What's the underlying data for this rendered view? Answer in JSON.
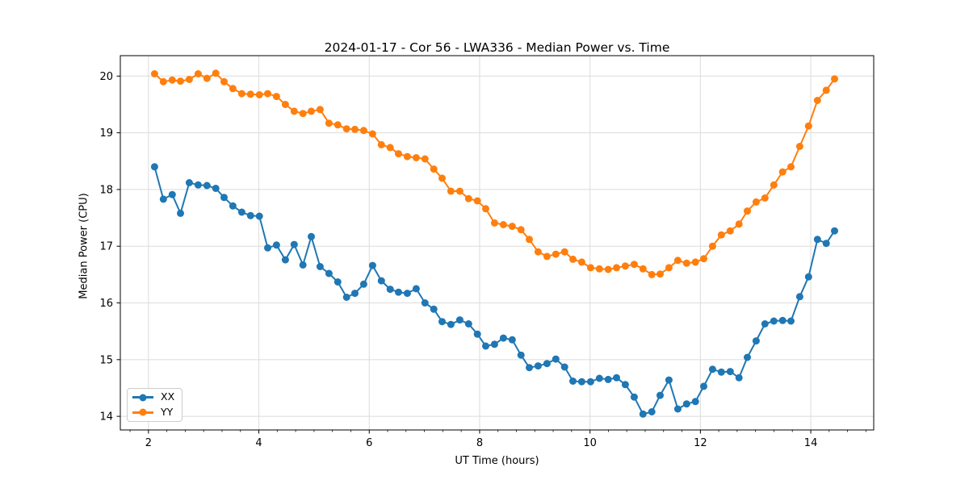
{
  "figure": {
    "background": "#ffffff"
  },
  "chart_data": {
    "type": "line",
    "title": "2024-01-17 - Cor 56 - LWA336 - Median Power vs. Time",
    "xlabel": "UT Time (hours)",
    "ylabel": "Median Power (CPU)",
    "xlim": [
      1.49,
      15.14
    ],
    "ylim": [
      13.76,
      20.36
    ],
    "x_ticks": [
      2,
      4,
      6,
      8,
      10,
      12,
      14
    ],
    "x_tick_labels": [
      "2",
      "4",
      "6",
      "8",
      "10",
      "12",
      "14"
    ],
    "x_minor_tick_step": 0.3333,
    "y_ticks": [
      14,
      15,
      16,
      17,
      18,
      19,
      20
    ],
    "y_tick_labels": [
      "14",
      "15",
      "16",
      "17",
      "18",
      "19",
      "20"
    ],
    "grid": true,
    "legend_position": "lower-left",
    "x": [
      2.11,
      2.27,
      2.43,
      2.58,
      2.74,
      2.9,
      3.06,
      3.22,
      3.37,
      3.53,
      3.69,
      3.85,
      4.01,
      4.16,
      4.32,
      4.48,
      4.64,
      4.8,
      4.95,
      5.11,
      5.27,
      5.43,
      5.59,
      5.74,
      5.9,
      6.06,
      6.22,
      6.38,
      6.53,
      6.69,
      6.85,
      7.01,
      7.17,
      7.32,
      7.48,
      7.64,
      7.8,
      7.96,
      8.11,
      8.27,
      8.43,
      8.59,
      8.75,
      8.9,
      9.06,
      9.22,
      9.38,
      9.54,
      9.69,
      9.85,
      10.01,
      10.17,
      10.33,
      10.48,
      10.64,
      10.8,
      10.96,
      11.12,
      11.27,
      11.43,
      11.59,
      11.75,
      11.91,
      12.06,
      12.22,
      12.38,
      12.54,
      12.7,
      12.85,
      13.01,
      13.17,
      13.33,
      13.49,
      13.64,
      13.8,
      13.96,
      14.12,
      14.28,
      14.43
    ],
    "series": [
      {
        "name": "XX",
        "color": "#1f77b4",
        "marker": "circle",
        "y": [
          18.4,
          17.83,
          17.91,
          17.58,
          18.12,
          18.08,
          18.07,
          18.02,
          17.86,
          17.71,
          17.6,
          17.54,
          17.53,
          16.97,
          17.02,
          16.76,
          17.03,
          16.67,
          17.17,
          16.64,
          16.52,
          16.37,
          16.1,
          16.17,
          16.33,
          16.66,
          16.39,
          16.24,
          16.19,
          16.17,
          16.25,
          16.0,
          15.89,
          15.67,
          15.62,
          15.7,
          15.63,
          15.45,
          15.24,
          15.27,
          15.38,
          15.35,
          15.08,
          14.86,
          14.89,
          14.93,
          15.01,
          14.87,
          14.62,
          14.61,
          14.61,
          14.67,
          14.65,
          14.68,
          14.56,
          14.34,
          14.04,
          14.08,
          14.37,
          14.64,
          14.13,
          14.22,
          14.26,
          14.53,
          14.83,
          14.78,
          14.79,
          14.68,
          15.04,
          15.33,
          15.63,
          15.68,
          15.69,
          15.68,
          16.11,
          16.46,
          17.12,
          17.05,
          17.27
        ]
      },
      {
        "name": "YY",
        "color": "#ff7f0e",
        "marker": "circle",
        "y": [
          20.04,
          19.9,
          19.93,
          19.91,
          19.94,
          20.04,
          19.96,
          20.05,
          19.9,
          19.78,
          19.69,
          19.68,
          19.67,
          19.69,
          19.64,
          19.5,
          19.38,
          19.34,
          19.38,
          19.41,
          19.17,
          19.14,
          19.07,
          19.06,
          19.04,
          18.98,
          18.79,
          18.74,
          18.63,
          18.58,
          18.56,
          18.54,
          18.36,
          18.2,
          17.97,
          17.97,
          17.84,
          17.8,
          17.66,
          17.41,
          17.38,
          17.35,
          17.29,
          17.12,
          16.9,
          16.82,
          16.86,
          16.9,
          16.77,
          16.72,
          16.62,
          16.6,
          16.59,
          16.62,
          16.65,
          16.68,
          16.6,
          16.5,
          16.51,
          16.62,
          16.75,
          16.7,
          16.72,
          16.78,
          17.0,
          17.2,
          17.27,
          17.39,
          17.62,
          17.78,
          17.85,
          18.08,
          18.31,
          18.4,
          18.76,
          19.12,
          19.57,
          19.75,
          19.95
        ]
      }
    ]
  }
}
